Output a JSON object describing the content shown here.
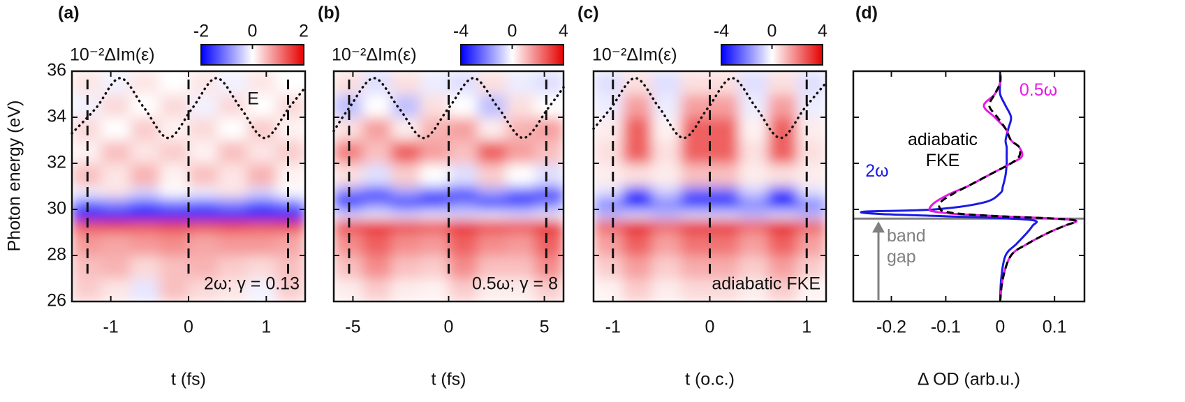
{
  "chart_data": [
    {
      "type": "heatmap",
      "panel_label": "(a)",
      "xlabel": "t (fs)",
      "ylabel": "Photon energy (eV)",
      "annotation": "2ω; γ = 0.13",
      "colorbar_label": "10⁻²ΔIm(ε)",
      "clim": [
        -2,
        2
      ],
      "cticks": [
        -2,
        0,
        2
      ],
      "xlim": [
        -1.5,
        1.5
      ],
      "xticks": [
        -1,
        0,
        1
      ],
      "ylim": [
        26,
        36
      ],
      "yticks": [
        26,
        28,
        30,
        32,
        34,
        36
      ],
      "x_edges": [
        -1.5,
        -1.125,
        -0.75,
        -0.375,
        0,
        0.375,
        0.75,
        1.125,
        1.5
      ],
      "y_edges": [
        26,
        27,
        28,
        29,
        29.55,
        30,
        30.5,
        31,
        32,
        33,
        34,
        35,
        36
      ],
      "z": [
        [
          0.4,
          0.2,
          -0.2,
          0.5,
          0.3,
          0.2,
          -0.1,
          0.4
        ],
        [
          0.5,
          0.6,
          0.3,
          0.5,
          0.6,
          0.4,
          0.3,
          0.5
        ],
        [
          0.8,
          0.7,
          0.8,
          0.9,
          0.7,
          0.8,
          0.8,
          0.7
        ],
        [
          1.4,
          1.5,
          1.4,
          1.5,
          1.4,
          1.5,
          1.4,
          1.5
        ],
        [
          -2,
          -2,
          -2,
          -2,
          -2,
          -2,
          -2,
          -2
        ],
        [
          -1.2,
          -1,
          -1.3,
          -1.1,
          -1.2,
          -1,
          -1.3,
          -1.1
        ],
        [
          -0.1,
          0.2,
          -0.3,
          0,
          -0.1,
          0.2,
          -0.3,
          0
        ],
        [
          0.5,
          0.2,
          0.6,
          0.1,
          0.5,
          0.2,
          0.6,
          0.1
        ],
        [
          0.1,
          0.5,
          0.2,
          0.4,
          0.1,
          0.5,
          0.2,
          0.4
        ],
        [
          0.3,
          0,
          0.4,
          0.1,
          0.3,
          0,
          0.4,
          0.1
        ],
        [
          -0.1,
          0.3,
          0,
          0.3,
          -0.1,
          0.3,
          0,
          0.3
        ],
        [
          0.2,
          -0.1,
          0.2,
          0,
          0.2,
          -0.1,
          0.2,
          0
        ]
      ],
      "field": {
        "name": "E",
        "x": [
          -1.5,
          -1.19,
          -0.88,
          -0.57,
          -0.26,
          0.05,
          0.36,
          0.67,
          0.98,
          1.29,
          1.5
        ],
        "y": [
          33.3,
          34.4,
          35.7,
          34.4,
          33.1,
          34.4,
          35.7,
          34.4,
          33.1,
          34.4,
          35.3
        ]
      },
      "vlines": [
        -1.3,
        0,
        1.28
      ]
    },
    {
      "type": "heatmap",
      "panel_label": "(b)",
      "xlabel": "t (fs)",
      "annotation": "0.5ω; γ = 8",
      "colorbar_label": "10⁻²ΔIm(ε)",
      "clim": [
        -4,
        4
      ],
      "cticks": [
        -4,
        0,
        4
      ],
      "xlim": [
        -6,
        6
      ],
      "xticks": [
        -5,
        0,
        5
      ],
      "ylim": [
        26,
        36
      ],
      "yticks": [
        26,
        28,
        30,
        32,
        34,
        36
      ],
      "x_edges": [
        -6,
        -4.5,
        -3,
        -1.5,
        0,
        1.5,
        3,
        4.5,
        6
      ],
      "y_edges": [
        26,
        27,
        28,
        29,
        29.55,
        30,
        30.5,
        31,
        32,
        33,
        34,
        35,
        36
      ],
      "z": [
        [
          0.3,
          0.8,
          0.3,
          0.2,
          0.8,
          0.3,
          0.3,
          0.8
        ],
        [
          1,
          1.8,
          1,
          0.8,
          1.8,
          1,
          1,
          1.8
        ],
        [
          1.8,
          2.5,
          1.8,
          1.6,
          2.5,
          1.8,
          1.6,
          2.5
        ],
        [
          3,
          3.5,
          3,
          2.8,
          3.5,
          3,
          2.8,
          3.5
        ],
        [
          -0.5,
          -0.3,
          -0.5,
          -0.3,
          -0.5,
          -0.3,
          -0.5,
          -0.3
        ],
        [
          -3.5,
          -2,
          -3.5,
          -3,
          -2,
          -3.5,
          -3,
          -2
        ],
        [
          -2,
          -3,
          -1.5,
          -2.5,
          -3,
          -1.5,
          -2.5,
          -3
        ],
        [
          0.5,
          -0.5,
          0.8,
          0,
          -0.5,
          0.8,
          0,
          -0.5
        ],
        [
          2,
          1,
          2.5,
          1.5,
          1,
          2.5,
          1.5,
          1
        ],
        [
          0.5,
          1.5,
          0.3,
          1.2,
          1.5,
          0.3,
          1.2,
          1.5
        ],
        [
          -1,
          0,
          -1,
          0.5,
          0,
          -1,
          0.5,
          0
        ],
        [
          0.5,
          -0.5,
          0.5,
          -0.3,
          -0.5,
          0.5,
          -0.3,
          -0.5
        ]
      ],
      "field": {
        "x": [
          -6,
          -5.2,
          -3.9,
          -2.6,
          -1.3,
          0,
          1.3,
          2.6,
          3.9,
          5.2,
          6
        ],
        "y": [
          33.4,
          34.4,
          35.7,
          34.4,
          33.1,
          34.4,
          35.7,
          34.4,
          33.1,
          34.4,
          35.3
        ]
      },
      "vlines": [
        -5.2,
        0,
        5.1
      ]
    },
    {
      "type": "heatmap",
      "panel_label": "(c)",
      "xlabel": "t (o.c.)",
      "annotation": "adiabatic FKE",
      "colorbar_label": "10⁻²ΔIm(ε)",
      "clim": [
        -4,
        4
      ],
      "cticks": [
        -4,
        0,
        4
      ],
      "xlim": [
        -1.2,
        1.2
      ],
      "xticks": [
        -1,
        0,
        1
      ],
      "ylim": [
        26,
        36
      ],
      "yticks": [
        26,
        28,
        30,
        32,
        34,
        36
      ],
      "x_edges": [
        -1.2,
        -0.9,
        -0.6,
        -0.3,
        0,
        0.3,
        0.6,
        0.9,
        1.2
      ],
      "y_edges": [
        26,
        27,
        28,
        29,
        29.55,
        30,
        30.5,
        31,
        32,
        33,
        34,
        35,
        36
      ],
      "z": [
        [
          0.2,
          0.8,
          0.3,
          0.6,
          0.6,
          0.3,
          0.8,
          0.2
        ],
        [
          0.8,
          1.5,
          0.8,
          1.3,
          1.3,
          0.8,
          1.5,
          0.8
        ],
        [
          1.5,
          2.5,
          1.5,
          2.2,
          2.2,
          1.5,
          2.5,
          1.5
        ],
        [
          2.5,
          3.8,
          2.5,
          3.5,
          3.5,
          2.5,
          3.8,
          2.5
        ],
        [
          -1,
          -0.5,
          -1,
          -0.5,
          -0.5,
          -1,
          -0.5,
          -1
        ],
        [
          -2,
          -3.8,
          -2,
          -3.5,
          -3.5,
          -2,
          -3.8,
          -2
        ],
        [
          -0.5,
          -3,
          -0.8,
          -2.5,
          -2.5,
          -0.8,
          -3,
          -0.5
        ],
        [
          0.3,
          0.5,
          0.3,
          1,
          1,
          0.3,
          0.5,
          0.3
        ],
        [
          0.5,
          2.5,
          0.5,
          2.5,
          2.5,
          0.5,
          2.5,
          0.5
        ],
        [
          0.3,
          2.5,
          0.2,
          2.5,
          2.5,
          0.2,
          2.5,
          0.3
        ],
        [
          -0.3,
          1.5,
          -0.3,
          1.5,
          1.5,
          -0.3,
          1.5,
          -0.3
        ],
        [
          -0.5,
          0.5,
          -0.5,
          0.5,
          0.5,
          -0.5,
          0.5,
          -0.5
        ]
      ],
      "field": {
        "x": [
          -1.2,
          -1.02,
          -0.77,
          -0.52,
          -0.27,
          -0.02,
          0.23,
          0.48,
          0.73,
          0.98,
          1.2
        ],
        "y": [
          33.5,
          34.4,
          35.7,
          34.4,
          33.1,
          34.4,
          35.7,
          34.4,
          33.1,
          34.4,
          35.5
        ]
      },
      "vlines": [
        -1,
        0,
        1
      ]
    },
    {
      "type": "line",
      "panel_label": "(d)",
      "xlabel": "Δ OD (arb.u.)",
      "xlim": [
        -0.27,
        0.155
      ],
      "xticks": [
        -0.2,
        -0.1,
        0,
        0.1
      ],
      "ylim": [
        26,
        36
      ],
      "yticks": [
        26,
        28,
        30,
        32,
        34,
        36
      ],
      "y": [
        26,
        27,
        28,
        28.5,
        29,
        29.3,
        29.5,
        29.6,
        29.7,
        29.8,
        29.9,
        30,
        30.3,
        30.7,
        31,
        31.5,
        32,
        32.3,
        32.7,
        33,
        33.5,
        34,
        34.5,
        35,
        35.5,
        36
      ],
      "series": [
        {
          "name": "2ω",
          "color": "#1a1ae6",
          "values": [
            0,
            0.002,
            0.01,
            0.03,
            0.05,
            0.06,
            0.065,
            0.02,
            -0.1,
            -0.22,
            -0.25,
            -0.12,
            -0.03,
            0,
            0.005,
            0.01,
            0.012,
            0.012,
            0.012,
            0.01,
            0.015,
            0.02,
            0.01,
            0,
            0,
            0
          ]
        },
        {
          "name": "0.5ω",
          "color": "#e61ae6",
          "values": [
            0,
            0.005,
            0.02,
            0.05,
            0.09,
            0.12,
            0.14,
            0.1,
            0,
            -0.08,
            -0.12,
            -0.13,
            -0.12,
            -0.09,
            -0.06,
            -0.02,
            0.02,
            0.04,
            0.035,
            0.02,
            0.01,
            -0.01,
            -0.03,
            -0.01,
            0,
            0
          ]
        },
        {
          "name": "adiabatic FKE",
          "color": "#000000",
          "dashed": true,
          "values": [
            0,
            0.005,
            0.02,
            0.05,
            0.09,
            0.12,
            0.14,
            0.1,
            0,
            -0.07,
            -0.1,
            -0.11,
            -0.11,
            -0.085,
            -0.06,
            -0.02,
            0.02,
            0.035,
            0.035,
            0.02,
            0.01,
            -0.005,
            -0.02,
            -0.01,
            0,
            0
          ]
        }
      ],
      "band_gap": {
        "energy": 29.6,
        "label": "band gap",
        "color": "#808080"
      }
    }
  ]
}
